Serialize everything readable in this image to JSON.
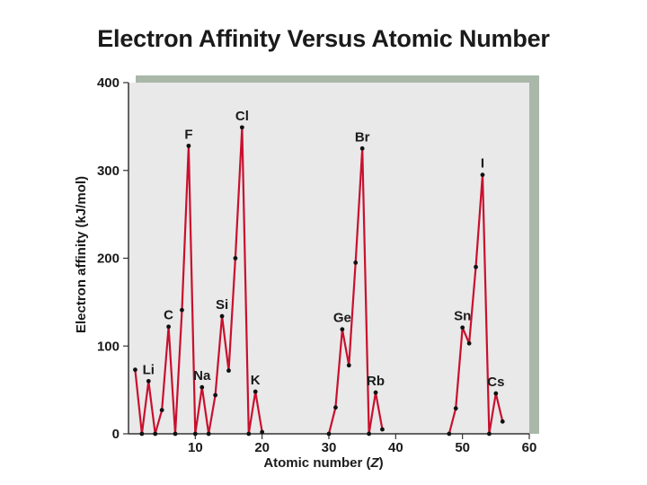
{
  "chart_data": {
    "type": "line",
    "title": "Electron Affinity Versus Atomic Number",
    "xlabel_prefix": "Atomic number (",
    "xlabel_var": "Z",
    "xlabel_suffix": ")",
    "ylabel": "Electron affinity (kJ/mol)",
    "xlim": [
      0,
      60
    ],
    "ylim": [
      0,
      400
    ],
    "x_ticks": [
      10,
      20,
      30,
      40,
      50,
      60
    ],
    "y_ticks": [
      0,
      100,
      200,
      300,
      400
    ],
    "grid": false,
    "series": [
      {
        "values": [
          {
            "x": 1,
            "y": 73
          },
          {
            "x": 2,
            "y": 0
          },
          {
            "x": 3,
            "y": 60,
            "label": "Li"
          },
          {
            "x": 4,
            "y": 0
          },
          {
            "x": 5,
            "y": 27
          },
          {
            "x": 6,
            "y": 122,
            "label": "C"
          },
          {
            "x": 7,
            "y": 0
          },
          {
            "x": 8,
            "y": 141
          },
          {
            "x": 9,
            "y": 328,
            "label": "F"
          },
          {
            "x": 10,
            "y": 0
          },
          {
            "x": 11,
            "y": 53,
            "label": "Na"
          },
          {
            "x": 12,
            "y": 0
          },
          {
            "x": 13,
            "y": 44
          },
          {
            "x": 14,
            "y": 134,
            "label": "Si"
          },
          {
            "x": 15,
            "y": 72
          },
          {
            "x": 16,
            "y": 200
          },
          {
            "x": 17,
            "y": 349,
            "label": "Cl"
          },
          {
            "x": 18,
            "y": 0
          },
          {
            "x": 19,
            "y": 48,
            "label": "K"
          },
          {
            "x": 20,
            "y": 2
          }
        ]
      },
      {
        "values": [
          {
            "x": 30,
            "y": 0
          },
          {
            "x": 31,
            "y": 30
          },
          {
            "x": 32,
            "y": 119,
            "label": "Ge"
          },
          {
            "x": 33,
            "y": 78
          },
          {
            "x": 34,
            "y": 195
          },
          {
            "x": 35,
            "y": 325,
            "label": "Br"
          },
          {
            "x": 36,
            "y": 0
          },
          {
            "x": 37,
            "y": 47,
            "label": "Rb"
          },
          {
            "x": 38,
            "y": 5
          }
        ]
      },
      {
        "values": [
          {
            "x": 48,
            "y": 0
          },
          {
            "x": 49,
            "y": 29
          },
          {
            "x": 50,
            "y": 121,
            "label": "Sn"
          },
          {
            "x": 51,
            "y": 103
          },
          {
            "x": 52,
            "y": 190
          },
          {
            "x": 53,
            "y": 295,
            "label": "I"
          },
          {
            "x": 54,
            "y": 0
          },
          {
            "x": 55,
            "y": 46,
            "label": "Cs"
          },
          {
            "x": 56,
            "y": 14
          }
        ]
      }
    ],
    "colors": {
      "plot_background": "#e9e9e9",
      "frame_shadow": "#a9b8a9",
      "line": "#c8102e",
      "marker": "#111111"
    }
  }
}
